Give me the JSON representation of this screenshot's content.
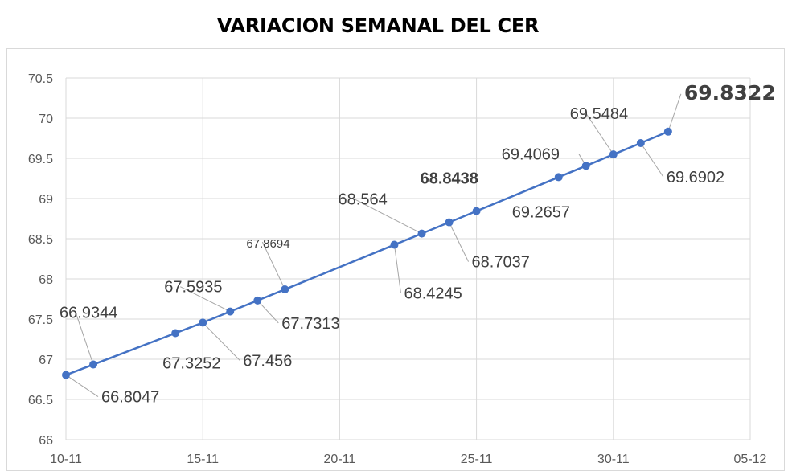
{
  "chart_data": {
    "type": "line",
    "title": "VARIACION SEMANAL DEL CER",
    "xlabel": "",
    "ylabel": "",
    "x_tick_labels": [
      "10-11",
      "15-11",
      "20-11",
      "25-11",
      "30-11",
      "05-12"
    ],
    "y_tick_labels": [
      "66",
      "66.5",
      "67",
      "67.5",
      "68",
      "68.5",
      "69",
      "69.5",
      "70",
      "70.5"
    ],
    "ylim": [
      66,
      70.5
    ],
    "grid": true,
    "legend": "none",
    "series": [
      {
        "color": "#4472c4",
        "points": [
          {
            "x": "10-11",
            "y": 66.8047,
            "label": "66.8047"
          },
          {
            "x": "11-11",
            "y": 66.9344,
            "label": "66.9344"
          },
          {
            "x": "14-11",
            "y": 67.3252,
            "label": "67.3252"
          },
          {
            "x": "15-11",
            "y": 67.456,
            "label": "67.456"
          },
          {
            "x": "16-11",
            "y": 67.5935,
            "label": "67.5935"
          },
          {
            "x": "17-11",
            "y": 67.7313,
            "label": "67.7313"
          },
          {
            "x": "18-11",
            "y": 67.8694,
            "label": "67.8694"
          },
          {
            "x": "22-11",
            "y": 68.4245,
            "label": "68.4245"
          },
          {
            "x": "23-11",
            "y": 68.564,
            "label": "68.564"
          },
          {
            "x": "24-11",
            "y": 68.7037,
            "label": "68.7037"
          },
          {
            "x": "25-11",
            "y": 68.8438,
            "label": "68.8438"
          },
          {
            "x": "28-11",
            "y": 69.2657,
            "label": "69.2657"
          },
          {
            "x": "29-11",
            "y": 69.4069,
            "label": "69.4069"
          },
          {
            "x": "30-11",
            "y": 69.5484,
            "label": "69.5484"
          },
          {
            "x": "01-12",
            "y": 69.6902,
            "label": "69.6902"
          },
          {
            "x": "02-12",
            "y": 69.8322,
            "label": "69.8322"
          }
        ]
      }
    ]
  }
}
